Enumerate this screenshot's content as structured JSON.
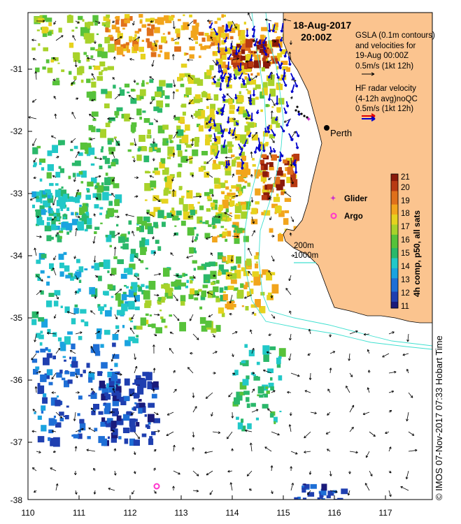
{
  "title": {
    "date": "18-Aug-2017",
    "time": "20:00Z"
  },
  "gsla_legend": {
    "line1": "GSLA (0.1m contours)",
    "line2": "and velocities for",
    "line3": "19-Aug 00:00Z",
    "scale": "0.5m/s (1kt 12h)"
  },
  "hf_legend": {
    "line1": "HF radar velocity",
    "line2": "(4-12h avg)noQC",
    "scale": "0.5m/s (1kt 12h)"
  },
  "city": "Perth",
  "markers": {
    "glider": "Glider",
    "argo": "Argo"
  },
  "isobaths": {
    "shallow": "200m",
    "deep": "1000m"
  },
  "colorbar": {
    "label": "4h comp, p50, all sats",
    "min": 11,
    "max": 21,
    "ticks": [
      "11",
      "12",
      "13",
      "14",
      "15",
      "16",
      "17",
      "18",
      "19",
      "20",
      "21"
    ]
  },
  "axes": {
    "x_ticks": [
      "110",
      "111",
      "112",
      "113",
      "114",
      "115",
      "116",
      "117"
    ],
    "y_ticks": [
      "-31",
      "-32",
      "-33",
      "-34",
      "-35",
      "-36",
      "-37",
      "-38"
    ],
    "lon_range": [
      110,
      117.9
    ],
    "lat_range": [
      -38,
      -30.2
    ]
  },
  "credit": "© IMOS 07-Nov-2017 07:33 Hobart Time",
  "colors": {
    "land": "#fbc48f",
    "isobath": "#40e0d0",
    "hf_arrow": "#0000cc",
    "glider": "#cc33cc",
    "argo": "#ff33cc"
  }
}
